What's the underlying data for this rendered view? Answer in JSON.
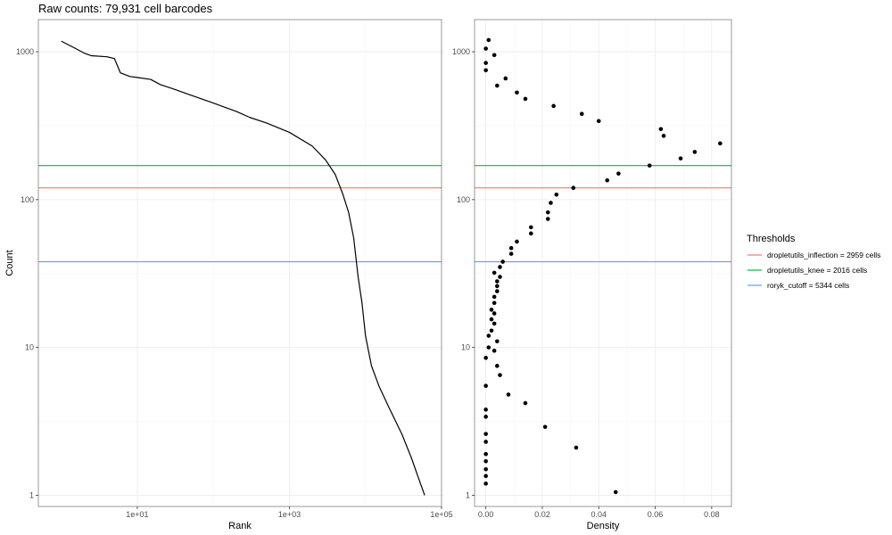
{
  "title": "Raw counts: 79,931 cell barcodes",
  "chart_data": [
    {
      "type": "line",
      "xlabel": "Rank",
      "ylabel": "Count",
      "x_scale": "log10",
      "y_scale": "log10",
      "xlim": [
        0.5,
        100000
      ],
      "ylim": [
        0.84,
        1650
      ],
      "x_ticks": [
        10,
        1000,
        100000
      ],
      "x_tick_labels": [
        "1e+01",
        "1e+03",
        "1e+05"
      ],
      "y_ticks": [
        1,
        10,
        100,
        1000
      ],
      "y_tick_labels": [
        "1",
        "10",
        "100",
        "1000"
      ],
      "grid": true,
      "series": [
        {
          "points": [
            [
              1,
              1180
            ],
            [
              1.5,
              1060
            ],
            [
              2,
              980
            ],
            [
              2.5,
              940
            ],
            [
              4,
              925
            ],
            [
              5,
              900
            ],
            [
              6,
              720
            ],
            [
              8,
              680
            ],
            [
              10,
              670
            ],
            [
              15,
              650
            ],
            [
              20,
              600
            ],
            [
              30,
              560
            ],
            [
              50,
              510
            ],
            [
              100,
              450
            ],
            [
              200,
              395
            ],
            [
              300,
              360
            ],
            [
              500,
              330
            ],
            [
              1000,
              285
            ],
            [
              2000,
              230
            ],
            [
              3000,
              185
            ],
            [
              4000,
              148
            ],
            [
              5000,
              110
            ],
            [
              6000,
              82
            ],
            [
              7000,
              55
            ],
            [
              8000,
              30
            ],
            [
              9000,
              20
            ],
            [
              10000,
              12
            ],
            [
              12000,
              7.5
            ],
            [
              15000,
              5.5
            ],
            [
              20000,
              4
            ],
            [
              30000,
              2.6
            ],
            [
              40000,
              1.8
            ],
            [
              50000,
              1.3
            ],
            [
              60000,
              1
            ]
          ]
        }
      ],
      "thresholds": [
        {
          "name": "dropletutils_inflection",
          "value": 120,
          "color": "#F8766D"
        },
        {
          "name": "dropletutils_knee",
          "value": 170,
          "color": "#00BA38"
        },
        {
          "name": "roryk_cutoff",
          "value": 38,
          "color": "#619CFF"
        }
      ]
    },
    {
      "type": "scatter",
      "xlabel": "Density",
      "ylabel": "",
      "x_scale": "linear",
      "y_scale": "log10",
      "xlim": [
        -0.004,
        0.087
      ],
      "ylim": [
        0.84,
        1650
      ],
      "x_ticks": [
        0,
        0.02,
        0.04,
        0.06,
        0.08
      ],
      "x_tick_labels": [
        "0.00",
        "0.02",
        "0.04",
        "0.06",
        "0.08"
      ],
      "y_ticks": [
        1,
        10,
        100,
        1000
      ],
      "y_tick_labels": [
        "1",
        "10",
        "100",
        "1000"
      ],
      "grid": true,
      "points": [
        [
          0.001,
          1200
        ],
        [
          0.0,
          1050
        ],
        [
          0.003,
          950
        ],
        [
          0.0,
          840
        ],
        [
          0.0,
          750
        ],
        [
          0.007,
          660
        ],
        [
          0.004,
          590
        ],
        [
          0.011,
          530
        ],
        [
          0.014,
          480
        ],
        [
          0.024,
          430
        ],
        [
          0.034,
          380
        ],
        [
          0.04,
          340
        ],
        [
          0.062,
          300
        ],
        [
          0.063,
          270
        ],
        [
          0.083,
          240
        ],
        [
          0.074,
          210
        ],
        [
          0.069,
          190
        ],
        [
          0.058,
          170
        ],
        [
          0.047,
          150
        ],
        [
          0.043,
          135
        ],
        [
          0.031,
          120
        ],
        [
          0.025,
          108
        ],
        [
          0.023,
          95
        ],
        [
          0.022,
          82
        ],
        [
          0.022,
          74
        ],
        [
          0.016,
          65
        ],
        [
          0.016,
          59
        ],
        [
          0.011,
          52
        ],
        [
          0.009,
          47
        ],
        [
          0.009,
          43
        ],
        [
          0.006,
          38
        ],
        [
          0.005,
          35
        ],
        [
          0.003,
          32
        ],
        [
          0.005,
          30
        ],
        [
          0.004,
          28
        ],
        [
          0.004,
          26
        ],
        [
          0.004,
          24
        ],
        [
          0.003,
          22
        ],
        [
          0.003,
          20
        ],
        [
          0.002,
          18
        ],
        [
          0.003,
          17
        ],
        [
          0.002,
          15.5
        ],
        [
          0.003,
          14.5
        ],
        [
          0.002,
          13
        ],
        [
          0.001,
          12
        ],
        [
          0.004,
          11
        ],
        [
          0.001,
          10
        ],
        [
          0.003,
          9.5
        ],
        [
          0.0,
          8.5
        ],
        [
          0.004,
          7.5
        ],
        [
          0.005,
          6.5
        ],
        [
          0.0,
          5.5
        ],
        [
          0.008,
          4.8
        ],
        [
          0.014,
          4.2
        ],
        [
          0.0,
          3.8
        ],
        [
          0.0,
          3.4
        ],
        [
          0.021,
          2.9
        ],
        [
          0.0,
          2.6
        ],
        [
          0.0,
          2.3
        ],
        [
          0.032,
          2.1
        ],
        [
          0.0,
          1.9
        ],
        [
          0.0,
          1.7
        ],
        [
          0.0,
          1.5
        ],
        [
          0.0,
          1.35
        ],
        [
          0.0,
          1.2
        ],
        [
          0.046,
          1.05
        ]
      ],
      "thresholds": [
        {
          "name": "dropletutils_inflection",
          "value": 120,
          "color": "#F8766D"
        },
        {
          "name": "dropletutils_knee",
          "value": 170,
          "color": "#00BA38"
        },
        {
          "name": "roryk_cutoff",
          "value": 38,
          "color": "#619CFF"
        }
      ]
    }
  ],
  "legend": {
    "title": "Thresholds",
    "placement": "right",
    "items": [
      {
        "label": "dropletutils_inflection = 2959 cells",
        "color": "#F8766D"
      },
      {
        "label": "dropletutils_knee = 2016 cells",
        "color": "#00BA38"
      },
      {
        "label": "roryk_cutoff = 5344 cells",
        "color": "#619CFF"
      }
    ]
  }
}
